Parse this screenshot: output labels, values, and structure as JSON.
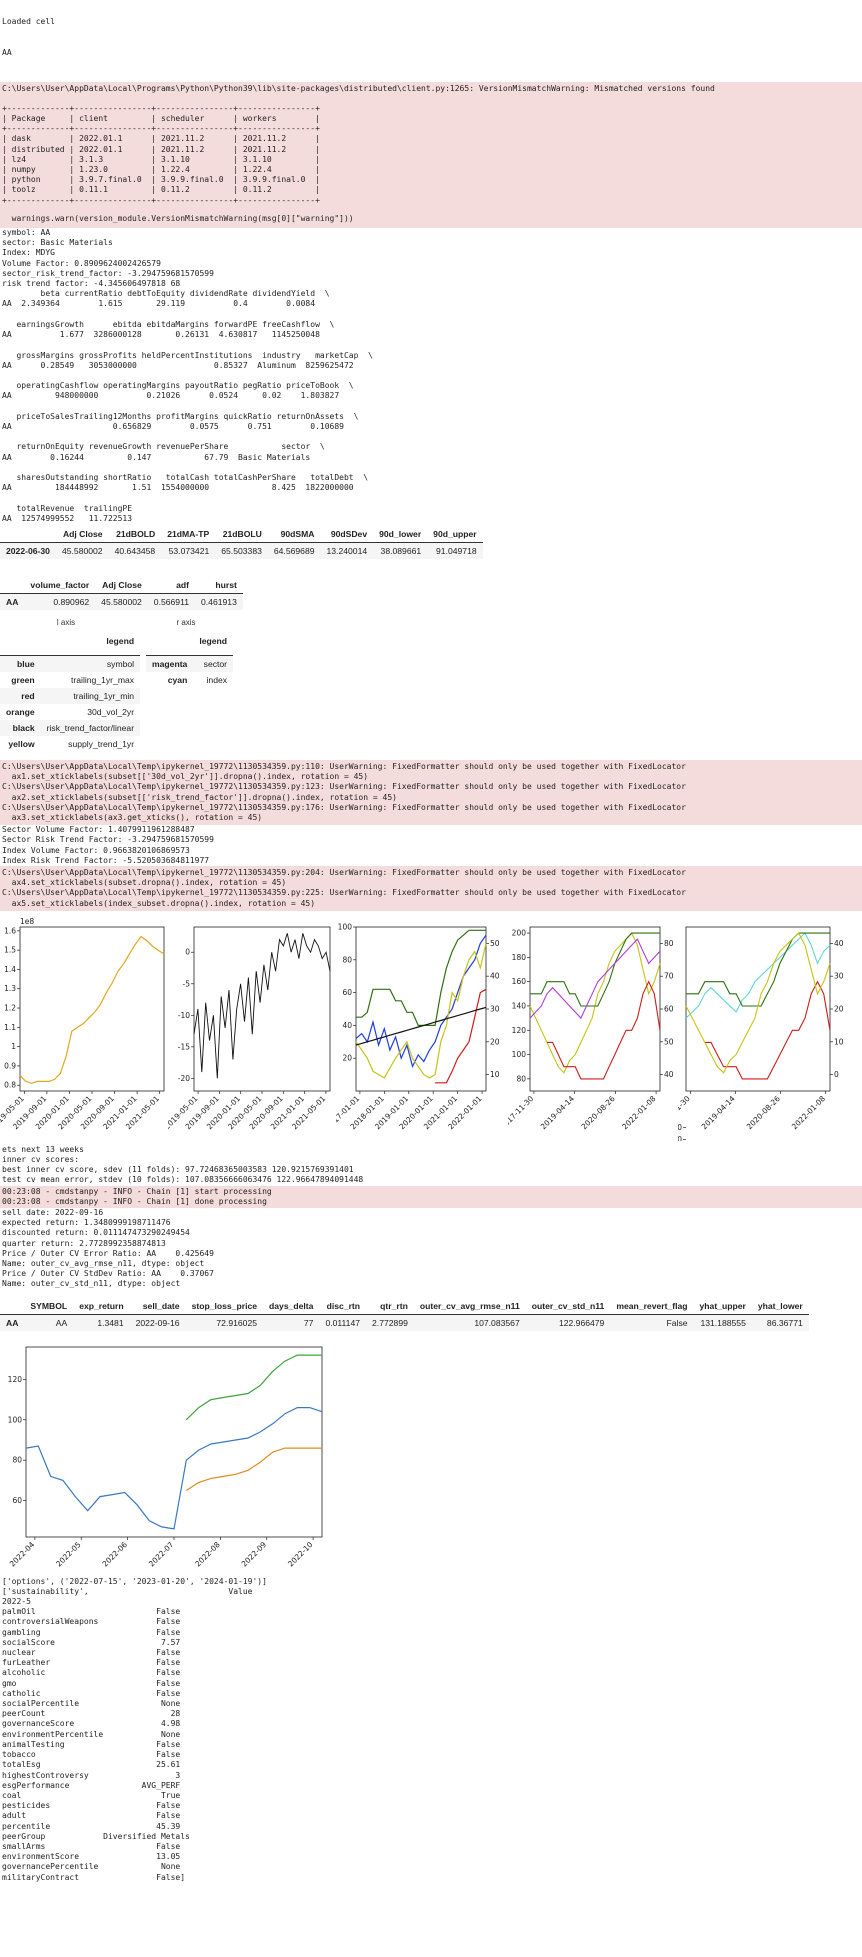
{
  "top_lines": [
    "Loaded cell",
    "AA"
  ],
  "warning_1": {
    "path": "C:\\Users\\User\\AppData\\Local\\Programs\\Python\\Python39\\lib\\site-packages\\distributed\\client.py:1265: VersionMismatchWarning: Mismatched versions found",
    "table": "+-------------+----------------+----------------+----------------+\n| Package     | client         | scheduler      | workers        |\n+-------------+----------------+----------------+----------------+\n| dask        | 2022.01.1      | 2021.11.2      | 2021.11.2      |\n| distributed | 2022.01.1      | 2021.11.2      | 2021.11.2      |\n| lz4         | 3.1.3          | 3.1.10         | 3.1.10         |\n| numpy       | 1.23.0         | 1.22.4         | 1.22.4         |\n| python      | 3.9.7.final.0  | 3.9.9.final.0  | 3.9.9.final.0  |\n| toolz       | 0.11.1         | 0.11.2         | 0.11.2         |\n+-------------+----------------+----------------+----------------+",
    "footer": "  warnings.warn(version_module.VersionMismatchWarning(msg[0][\"warning\"]))"
  },
  "stdout_1": "symbol: AA\nsector: Basic Materials\nIndex: MDYG\nVolume Factor: 0.8909624002426579\nsector_risk_trend_factor: -3.294759681570599\nrisk trend factor: -4.345606497818 68\n        beta currentRatio debtToEquity dividendRate dividendYield  \\\nAA  2.349364        1.615       29.119          0.4        0.0084\n\n   earningsGrowth      ebitda ebitdaMargins forwardPE freeCashflow  \\\nAA          1.677  3286000128       0.26131  4.630817   1145250048\n\n   grossMargins grossProfits heldPercentInstitutions  industry   marketCap  \\\nAA      0.28549   3053000000                0.85327  Aluminum  8259625472\n\n   operatingCashflow operatingMargins payoutRatio pegRatio priceToBook  \\\nAA         948000000          0.21026      0.0524     0.02    1.803827\n\n   priceToSalesTrailing12Months profitMargins quickRatio returnOnAssets  \\\nAA                     0.656829        0.0575      0.751        0.10689\n\n   returnOnEquity revenueGrowth revenuePerShare           sector  \\\nAA        0.16244         0.147           67.79  Basic Materials\n\n   sharesOutstanding shortRatio   totalCash totalCashPerShare   totalDebt  \\\nAA         184448992       1.51  1554000000             8.425  1822000000\n\n   totalRevenue  trailingPE\nAA  12574999552   11.722513",
  "table_prices": {
    "columns": [
      "",
      "Adj Close",
      "21dBOLD",
      "21dMA-TP",
      "21dBOLU",
      "90dSMA",
      "90dSDev",
      "90d_lower",
      "90d_upper"
    ],
    "rows": [
      [
        "2022-06-30",
        "45.580002",
        "40.643458",
        "53.073421",
        "65.503383",
        "64.569689",
        "13.240014",
        "38.089661",
        "91.049718"
      ]
    ]
  },
  "table_factors": {
    "columns": [
      "",
      "volume_factor",
      "Adj Close",
      "adf",
      "hurst"
    ],
    "rows": [
      [
        "AA",
        "0.890962",
        "45.580002",
        "0.566911",
        "0.461913"
      ]
    ]
  },
  "legend_l": {
    "title": "l axis",
    "header": "legend",
    "rows": [
      [
        "blue",
        "symbol"
      ],
      [
        "green",
        "trailing_1yr_max"
      ],
      [
        "red",
        "trailing_1yr_min"
      ],
      [
        "orange",
        "30d_vol_2yr"
      ],
      [
        "black",
        "risk_trend_factor/linear"
      ],
      [
        "yellow",
        "supply_trend_1yr"
      ]
    ]
  },
  "legend_r": {
    "title": "r axis",
    "header": "legend",
    "rows": [
      [
        "magenta",
        "sector"
      ],
      [
        "cyan",
        "index"
      ]
    ]
  },
  "warning_2": "C:\\Users\\User\\AppData\\Local\\Temp\\ipykernel_19772\\1130534359.py:110: UserWarning: FixedFormatter should only be used together with FixedLocator\n  ax1.set_xticklabels(subset[['30d_vol_2yr']].dropna().index, rotation = 45)\nC:\\Users\\User\\AppData\\Local\\Temp\\ipykernel_19772\\1130534359.py:123: UserWarning: FixedFormatter should only be used together with FixedLocator\n  ax2.set_xticklabels(subset[['risk_trend_factor']].dropna().index, rotation = 45)\nC:\\Users\\User\\AppData\\Local\\Temp\\ipykernel_19772\\1130534359.py:176: UserWarning: FixedFormatter should only be used together with FixedLocator\n  ax3.set_xticklabels(ax3.get_xticks(), rotation = 45)",
  "stdout_2": "Sector Volume Factor: 1.4079911961288487\nSector Risk Trend Factor: -3.294759681570599\nIndex Volume Factor: 0.9663820106869573\nIndex Risk Trend Factor: -5.520503684811977",
  "warning_3": "C:\\Users\\User\\AppData\\Local\\Temp\\ipykernel_19772\\1130534359.py:204: UserWarning: FixedFormatter should only be used together with FixedLocator\n  ax4.set_xticklabels(subset.dropna().index, rotation = 45)\nC:\\Users\\User\\AppData\\Local\\Temp\\ipykernel_19772\\1130534359.py:225: UserWarning: FixedFormatter should only be used together with FixedLocator\n  ax5.set_xticklabels(index_subset.dropna().index, rotation = 45)",
  "chart_data": [
    {
      "type": "line",
      "title": "",
      "offset_label": "1e8",
      "x": [
        "2019-05-01",
        "2019-06-01",
        "2019-07-01",
        "2019-08-01",
        "2019-09-01",
        "2019-10-01",
        "2019-11-01",
        "2019-12-01",
        "2020-01-01",
        "2020-02-01",
        "2020-03-01",
        "2020-04-01",
        "2020-05-01",
        "2020-06-01",
        "2020-07-01",
        "2020-08-01",
        "2020-09-01",
        "2020-10-01",
        "2020-11-01",
        "2020-12-01",
        "2021-01-01",
        "2021-02-01",
        "2021-03-01",
        "2021-04-01",
        "2021-05-01",
        "2021-06-01"
      ],
      "xticks": [
        "2019-05-01",
        "2019-09-01",
        "2020-01-01",
        "2020-05-01",
        "2020-09-01",
        "2021-01-01",
        "2021-05-01"
      ],
      "series": [
        {
          "color": "#e0a81c",
          "values": [
            0.85,
            0.82,
            0.81,
            0.82,
            0.82,
            0.82,
            0.83,
            0.86,
            0.95,
            1.08,
            1.1,
            1.12,
            1.15,
            1.18,
            1.22,
            1.28,
            1.33,
            1.39,
            1.43,
            1.48,
            1.53,
            1.57,
            1.55,
            1.52,
            1.5,
            1.48
          ]
        }
      ],
      "ylim": [
        0.77,
        1.62
      ],
      "yticks": [
        0.8,
        0.9,
        1.0,
        1.1,
        1.2,
        1.3,
        1.4,
        1.5,
        1.6
      ]
    },
    {
      "type": "line",
      "title": "",
      "xticks": [
        "2019-05-01",
        "2019-09-01",
        "2020-01-01",
        "2020-05-01",
        "2020-09-01",
        "2021-01-01",
        "2021-05-01"
      ],
      "series": [
        {
          "color": "#111111",
          "values": [
            -13,
            -9,
            -19,
            -8,
            -14,
            -10,
            -20,
            -7,
            -12,
            -6,
            -17,
            -9,
            -5,
            -11,
            -4,
            -13,
            -3,
            -8,
            -2,
            -6,
            0,
            -3,
            2,
            1,
            3,
            0,
            2,
            -1,
            3,
            1,
            0,
            2,
            1,
            -1,
            0,
            -3
          ]
        }
      ],
      "ylim": [
        -22,
        4
      ],
      "yticks": [
        0,
        -5,
        -10,
        -15,
        -20
      ]
    },
    {
      "type": "line",
      "title": "",
      "xticks": [
        "2017-01-01",
        "2018-01-01",
        "2019-01-01",
        "2020-01-01",
        "2021-01-01",
        "2022-01-01"
      ],
      "ylim": [
        0,
        100
      ],
      "yticks": [
        20,
        40,
        60,
        80,
        100
      ],
      "y2lim": [
        0,
        100
      ],
      "y2ticks": [
        10,
        20,
        30,
        40,
        50
      ],
      "series": [
        {
          "color": "#1f3ce0",
          "values": [
            32,
            35,
            30,
            42,
            28,
            38,
            25,
            33,
            20,
            28,
            15,
            22,
            18,
            25,
            30,
            40,
            45,
            50,
            60,
            70,
            75,
            80,
            90,
            95
          ]
        },
        {
          "color": "#2e6f10",
          "values": [
            45,
            45,
            48,
            62,
            62,
            62,
            62,
            55,
            55,
            48,
            48,
            40,
            40,
            40,
            40,
            60,
            75,
            85,
            92,
            95,
            98,
            98,
            98,
            98
          ]
        },
        {
          "color": "#d01a1a",
          "values": [
            null,
            null,
            null,
            null,
            null,
            null,
            null,
            null,
            null,
            null,
            null,
            null,
            null,
            null,
            5,
            5,
            5,
            12,
            20,
            25,
            30,
            45,
            60,
            62
          ]
        },
        {
          "color": "#c5c414",
          "values": [
            30,
            25,
            20,
            12,
            10,
            8,
            14,
            20,
            25,
            30,
            20,
            15,
            10,
            8,
            10,
            30,
            40,
            60,
            55,
            70,
            80,
            85,
            75,
            90
          ]
        },
        {
          "color": "#111111",
          "values": [
            28,
            29,
            30,
            31,
            32,
            33,
            34,
            35,
            36,
            37,
            38,
            39,
            40,
            41,
            42,
            43,
            44,
            45,
            46,
            47,
            48,
            49,
            50,
            51
          ]
        }
      ]
    },
    {
      "type": "line",
      "title": "",
      "xticks": [
        "2017-11-30",
        "2019-04-14",
        "2020-08-26",
        "2022-01-08"
      ],
      "ylim": [
        70,
        205
      ],
      "yticks": [
        80,
        100,
        120,
        140,
        160,
        180,
        200
      ],
      "y2ticks": [
        40,
        50,
        60,
        70,
        80
      ],
      "series": [
        {
          "color": "#c5c414",
          "values": [
            140,
            130,
            120,
            110,
            100,
            90,
            85,
            95,
            100,
            110,
            120,
            130,
            150,
            160,
            175,
            185,
            190,
            195,
            200,
            190,
            170,
            150,
            160,
            175
          ]
        },
        {
          "color": "#2e6f10",
          "values": [
            150,
            150,
            150,
            160,
            160,
            160,
            160,
            150,
            150,
            140,
            140,
            140,
            140,
            150,
            160,
            175,
            185,
            195,
            200,
            200,
            200,
            200,
            200,
            200
          ]
        },
        {
          "color": "#d01a1a",
          "values": [
            null,
            null,
            null,
            110,
            110,
            100,
            90,
            90,
            90,
            80,
            80,
            80,
            80,
            80,
            90,
            100,
            110,
            120,
            120,
            130,
            150,
            160,
            150,
            120
          ]
        },
        {
          "color": "#b23ad8",
          "values": [
            130,
            135,
            140,
            150,
            155,
            150,
            145,
            140,
            135,
            130,
            140,
            150,
            160,
            165,
            170,
            175,
            180,
            185,
            190,
            195,
            185,
            175,
            180,
            185
          ]
        }
      ]
    },
    {
      "type": "line",
      "title": "",
      "xticks": [
        "2017-11-30",
        "2019-04-14",
        "2020-08-26",
        "2022-01-08"
      ],
      "ylim": [
        70,
        205
      ],
      "yticks": [
        0,
        10,
        20,
        30,
        40
      ],
      "y2ticks": [
        0,
        10,
        20,
        30,
        40
      ],
      "series": [
        {
          "color": "#5fd6d6",
          "values": [
            130,
            135,
            140,
            150,
            155,
            150,
            145,
            140,
            135,
            145,
            150,
            160,
            165,
            170,
            175,
            180,
            185,
            190,
            195,
            200,
            190,
            175,
            185,
            190
          ]
        },
        {
          "color": "#2e6f10",
          "values": [
            150,
            150,
            150,
            160,
            160,
            160,
            160,
            150,
            150,
            140,
            140,
            140,
            140,
            150,
            160,
            175,
            185,
            195,
            200,
            200,
            200,
            200,
            200,
            200
          ]
        },
        {
          "color": "#d01a1a",
          "values": [
            null,
            null,
            null,
            110,
            110,
            100,
            90,
            90,
            90,
            80,
            80,
            80,
            80,
            80,
            90,
            100,
            110,
            120,
            120,
            130,
            150,
            160,
            150,
            120
          ]
        },
        {
          "color": "#c5c414",
          "values": [
            140,
            130,
            120,
            110,
            100,
            90,
            85,
            95,
            100,
            110,
            120,
            130,
            150,
            160,
            175,
            185,
            190,
            195,
            200,
            190,
            170,
            150,
            160,
            175
          ]
        }
      ]
    },
    {
      "type": "line",
      "title": "",
      "xticks": [
        "2022-04",
        "2022-05",
        "2022-06",
        "2022-07",
        "2022-08",
        "2022-09",
        "2022-10"
      ],
      "ylim": [
        42,
        136
      ],
      "yticks": [
        60,
        80,
        100,
        120
      ],
      "series": [
        {
          "color": "#3a78c0",
          "values": [
            86,
            87,
            72,
            70,
            62,
            55,
            62,
            63,
            64,
            58,
            50,
            47,
            46,
            80,
            85,
            88,
            89,
            90,
            91,
            94,
            98,
            103,
            106,
            106,
            104
          ]
        },
        {
          "color": "#e08a1c",
          "values": [
            null,
            null,
            null,
            null,
            null,
            null,
            null,
            null,
            null,
            null,
            null,
            null,
            null,
            65,
            69,
            71,
            72,
            73,
            75,
            79,
            84,
            86,
            86,
            86,
            86
          ]
        },
        {
          "color": "#3fa33a",
          "values": [
            null,
            null,
            null,
            null,
            null,
            null,
            null,
            null,
            null,
            null,
            null,
            null,
            null,
            100,
            106,
            110,
            111,
            112,
            113,
            117,
            124,
            129,
            132,
            132,
            132
          ]
        }
      ]
    }
  ],
  "stdout_3": "ets next 13 weeks\ninner cv scores:\nbest inner cv score, sdev (11 folds): 97.72468365003583 120.9215769391401\ntest cv mean error, stdev (10 folds): 107.08356666063476 122.96647894091448",
  "info_lines": "00:23:08 - cmdstanpy - INFO - Chain [1] start processing\n00:23:08 - cmdstanpy - INFO - Chain [1] done processing",
  "stdout_4": "sell date: 2022-09-16\nexpected return: 1.3480999198711476\ndiscounted return: 0.011147473290249454\nquarter return: 2.7728992358874813\nPrice / Outer CV Error Ratio: AA    0.425649\nName: outer_cv_avg_rmse_n11, dtype: object\nPrice / Outer CV StdDev Ratio: AA    0.37067\nName: outer_cv_std_n11, dtype: object",
  "table_forecast": {
    "columns": [
      "",
      "SYMBOL",
      "exp_return",
      "sell_date",
      "stop_loss_price",
      "days_delta",
      "disc_rtn",
      "qtr_rtn",
      "outer_cv_avg_rmse_n11",
      "outer_cv_std_n11",
      "mean_revert_flag",
      "yhat_upper",
      "yhat_lower"
    ],
    "rows": [
      [
        "AA",
        "AA",
        "1.3481",
        "2022-09-16",
        "72.916025",
        "77",
        "0.011147",
        "2.772899",
        "107.083567",
        "122.966479",
        "False",
        "131.188555",
        "86.36771"
      ]
    ]
  },
  "stdout_5": "['options', ('2022-07-15', '2023-01-20', '2024-01-19')]\n['sustainability',                             Value\n2022-5\npalmOil                         False\ncontroversialWeapons            False\ngambling                        False\nsocialScore                      7.57\nnuclear                         False\nfurLeather                      False\nalcoholic                       False\ngmo                             False\ncatholic                        False\nsocialPercentile                 None\npeerCount                          28\ngovernanceScore                  4.98\nenvironmentPercentile            None\nanimalTesting                   False\ntobacco                         False\ntotalEsg                        25.61\nhighestControversy                  3\nesgPerformance               AVG_PERF\ncoal                             True\npesticides                      False\nadult                           False\npercentile                      45.39\npeerGroup            Diversified Metals\nsmallArms                       False\nenvironmentScore                13.05\ngovernancePercentile             None\nmilitaryContract                False]"
}
